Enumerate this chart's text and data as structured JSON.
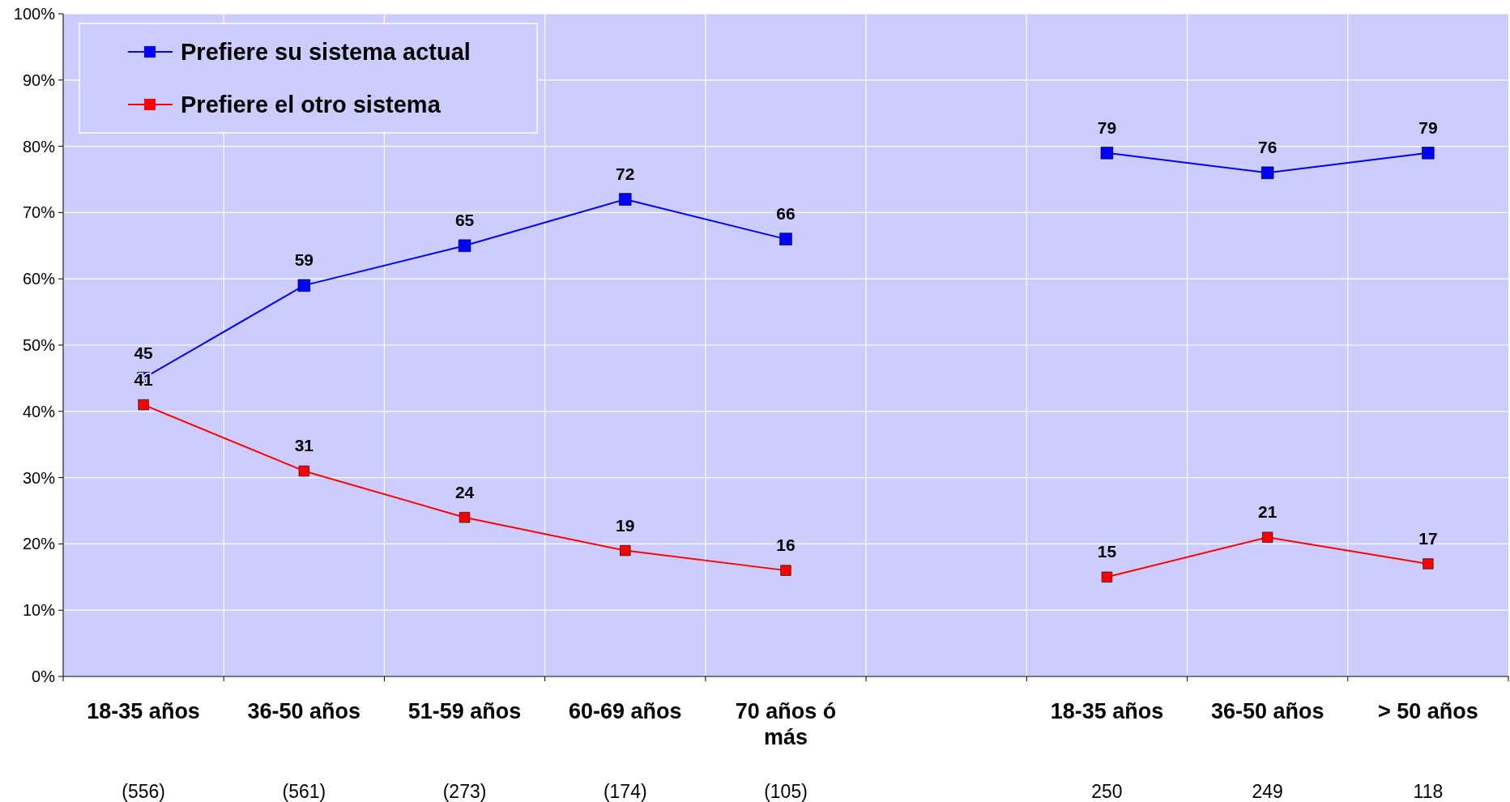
{
  "chart_data": {
    "type": "line",
    "categories": [
      "18-35 años",
      "36-50 años",
      "51-59 años",
      "60-69 años",
      "70 años ó más",
      null,
      "18-35 años",
      "36-50 años",
      "> 50 años"
    ],
    "series": [
      {
        "name": "Prefiere su sistema actual",
        "color": "#0000ff",
        "values": [
          45,
          59,
          65,
          72,
          66,
          null,
          79,
          76,
          79
        ]
      },
      {
        "name": "Prefiere el otro sistema",
        "color": "#ff0000",
        "values": [
          41,
          31,
          24,
          19,
          16,
          null,
          15,
          21,
          17
        ]
      }
    ],
    "ylim": [
      0,
      100
    ],
    "yticks": [
      {
        "value": 0,
        "label": "0%"
      },
      {
        "value": 10,
        "label": "10%"
      },
      {
        "value": 20,
        "label": "20%"
      },
      {
        "value": 30,
        "label": "30%"
      },
      {
        "value": 40,
        "label": "40%"
      },
      {
        "value": 50,
        "label": "50%"
      },
      {
        "value": 60,
        "label": "60%"
      },
      {
        "value": 70,
        "label": "70%"
      },
      {
        "value": 80,
        "label": "80%"
      },
      {
        "value": 90,
        "label": "90%"
      },
      {
        "value": 100,
        "label": "100%"
      }
    ],
    "grid": true,
    "legend": "top left",
    "marker": "square",
    "line_style": "solid",
    "data_labels": true,
    "annotations": [
      "(556)",
      "(561)",
      "(273)",
      "(174)",
      "(105)",
      "250",
      "249",
      "118"
    ]
  }
}
